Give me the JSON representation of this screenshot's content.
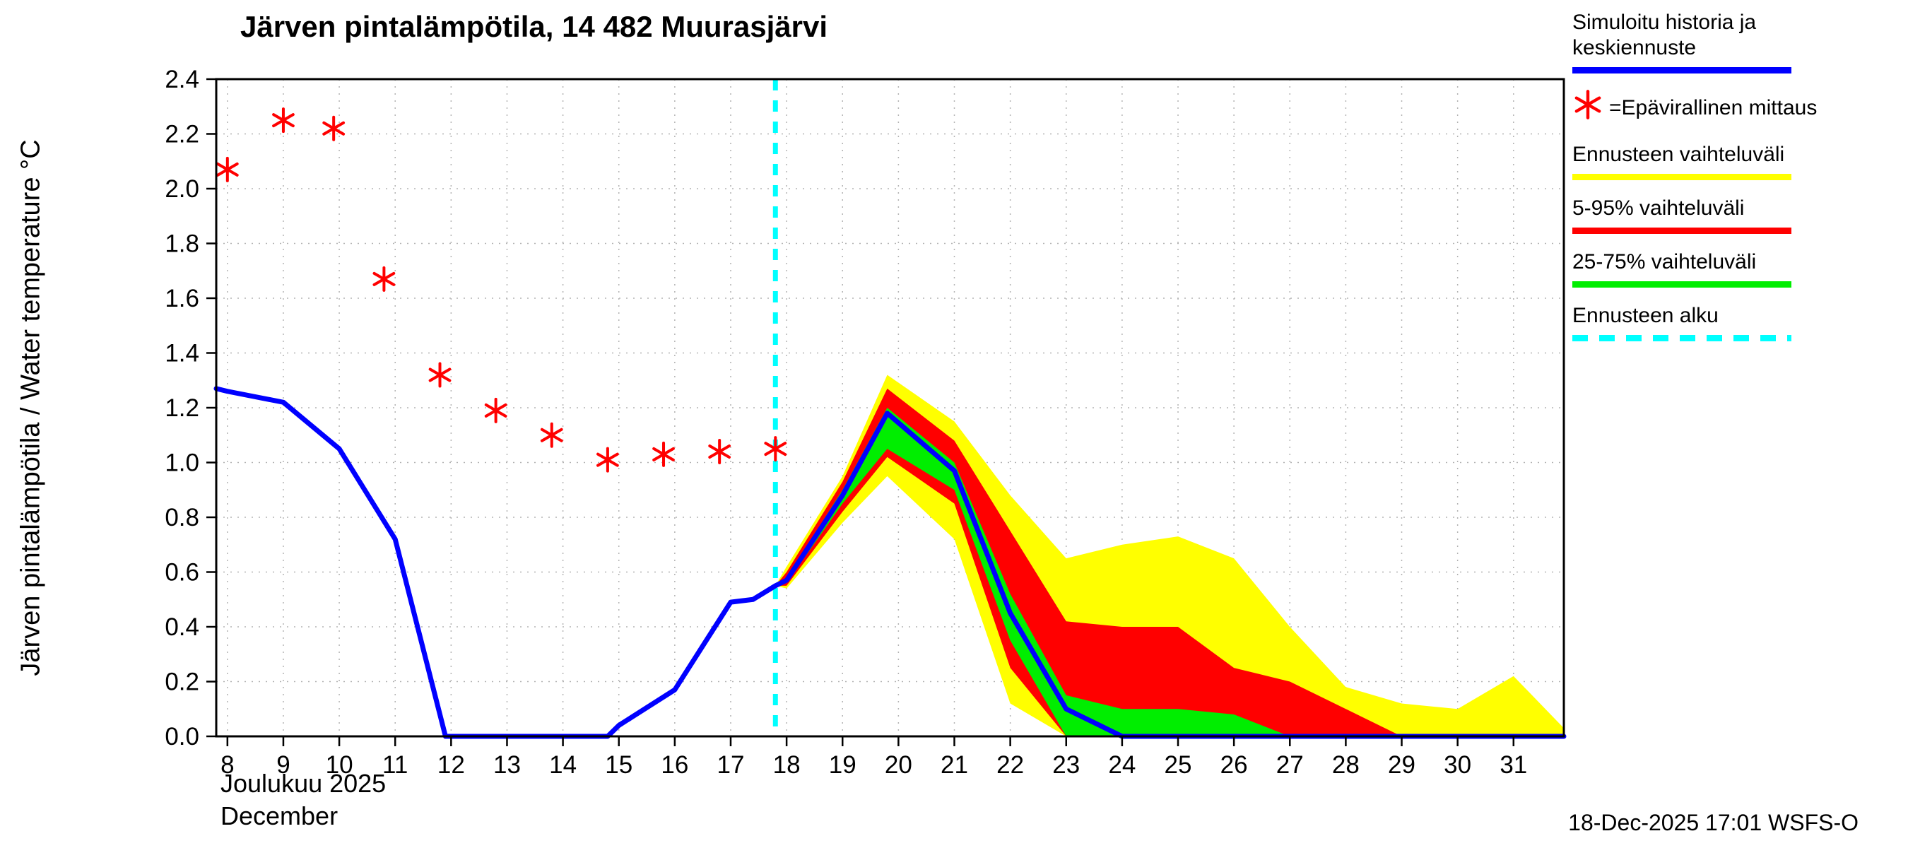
{
  "title": "Järven pintalämpötila, 14 482 Muurasjärvi",
  "y_axis": {
    "label": "Järven pintalämpötila / Water temperature °C",
    "ticks": [
      "0.0",
      "0.2",
      "0.4",
      "0.6",
      "0.8",
      "1.0",
      "1.2",
      "1.4",
      "1.6",
      "1.8",
      "2.0",
      "2.2",
      "2.4"
    ],
    "min": 0.0,
    "max": 2.4
  },
  "x_axis": {
    "ticks": [
      8,
      9,
      10,
      11,
      12,
      13,
      14,
      15,
      16,
      17,
      18,
      19,
      20,
      21,
      22,
      23,
      24,
      25,
      26,
      27,
      28,
      29,
      30,
      31
    ],
    "month_fi": "Joulukuu 2025",
    "month_en": "December"
  },
  "footer": "18-Dec-2025 17:01 WSFS-O",
  "colors": {
    "simulated_line": "#0000ff",
    "measurement": "#ff0000",
    "range_band": "#ffff00",
    "p5_95_band": "#ff0000",
    "p25_75_band": "#00ee00",
    "forecast_start_line": "#00ffff",
    "grid": "#b3b3b3",
    "axis": "#000000"
  },
  "legend": {
    "items": [
      {
        "label": "Simuloitu historia ja keskiennuste",
        "swatch": "blue-line"
      },
      {
        "label": "=Epävirallinen mittaus",
        "swatch": "red-asterisk"
      },
      {
        "label": "Ennusteen vaihteluväli",
        "swatch": "yellow-line"
      },
      {
        "label": "5-95% vaihteluväli",
        "swatch": "red-line"
      },
      {
        "label": "25-75% vaihteluväli",
        "swatch": "green-line"
      },
      {
        "label": "Ennusteen alku",
        "swatch": "cyan-dashed-line"
      }
    ]
  },
  "chart_data": {
    "type": "line",
    "title": "Järven pintalämpötila, 14 482 Muurasjärvi",
    "xlabel": "Joulukuu 2025 / December",
    "ylabel": "Järven pintalämpötila / Water temperature °C",
    "ylim": [
      0,
      2.4
    ],
    "xlim": [
      7.8,
      31.9
    ],
    "grid": true,
    "legend_position": "right",
    "forecast_start_x": 17.8,
    "history_line": {
      "name": "Simuloitu historia ja keskiennuste",
      "x": [
        7.8,
        8,
        9,
        10,
        11,
        11.9,
        13,
        14,
        14.8,
        15,
        16,
        17,
        17.4,
        17.8
      ],
      "y": [
        1.27,
        1.26,
        1.22,
        1.05,
        0.72,
        0.0,
        0.0,
        0.0,
        0.0,
        0.04,
        0.17,
        0.49,
        0.5,
        0.55
      ]
    },
    "forecast_mean": {
      "name": "Keskiennuste",
      "x": [
        17.8,
        18,
        19,
        19.8,
        21,
        22,
        23,
        24,
        25,
        26,
        27,
        28,
        29,
        30,
        31,
        31.9
      ],
      "y": [
        0.55,
        0.57,
        0.88,
        1.18,
        0.97,
        0.45,
        0.1,
        0.0,
        0.0,
        0.0,
        0.0,
        0.0,
        0.0,
        0.0,
        0.0,
        0.0
      ]
    },
    "measurements": {
      "name": "Epävirallinen mittaus",
      "x": [
        8,
        9,
        9.9,
        10.8,
        11.8,
        12.8,
        13.8,
        14.8,
        15.8,
        16.8,
        17.8
      ],
      "y": [
        2.07,
        2.25,
        2.22,
        1.67,
        1.32,
        1.19,
        1.1,
        1.01,
        1.03,
        1.04,
        1.05
      ]
    },
    "bands": {
      "x": [
        17.8,
        18,
        19,
        19.8,
        21,
        22,
        23,
        24,
        25,
        26,
        27,
        28,
        29,
        30,
        31,
        31.9
      ],
      "total_range": {
        "name": "Ennusteen vaihteluväli",
        "upper": [
          0.55,
          0.62,
          0.95,
          1.32,
          1.15,
          0.88,
          0.65,
          0.7,
          0.73,
          0.65,
          0.4,
          0.18,
          0.12,
          0.1,
          0.22,
          0.03
        ],
        "lower": [
          0.55,
          0.54,
          0.78,
          0.95,
          0.72,
          0.12,
          0.0,
          0.0,
          0.0,
          0.0,
          0.0,
          0.0,
          0.0,
          0.0,
          0.0,
          0.0
        ]
      },
      "p5_95": {
        "name": "5-95% vaihteluväli",
        "upper": [
          0.55,
          0.6,
          0.93,
          1.27,
          1.08,
          0.75,
          0.42,
          0.4,
          0.4,
          0.25,
          0.2,
          0.1,
          0.0,
          0.0,
          0.0,
          0.0
        ],
        "lower": [
          0.55,
          0.55,
          0.82,
          1.02,
          0.85,
          0.25,
          0.0,
          0.0,
          0.0,
          0.0,
          0.0,
          0.0,
          0.0,
          0.0,
          0.0,
          0.0
        ]
      },
      "p25_75": {
        "name": "25-75% vaihteluväli",
        "upper": [
          0.55,
          0.58,
          0.9,
          1.2,
          1.0,
          0.52,
          0.15,
          0.1,
          0.1,
          0.08,
          0.0,
          0.0,
          0.0,
          0.0,
          0.0,
          0.0
        ],
        "lower": [
          0.55,
          0.56,
          0.85,
          1.05,
          0.9,
          0.35,
          0.0,
          0.0,
          0.0,
          0.0,
          0.0,
          0.0,
          0.0,
          0.0,
          0.0,
          0.0
        ]
      }
    }
  }
}
